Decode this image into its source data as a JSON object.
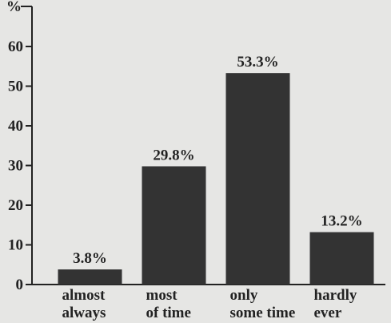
{
  "chart_data": {
    "type": "bar",
    "y_label": "%",
    "categories": [
      "almost\nalways",
      "most\nof time",
      "only\nsome time",
      "hardly\never"
    ],
    "values": [
      3.8,
      29.8,
      53.3,
      13.2
    ],
    "value_labels": [
      "3.8%",
      "29.8%",
      "53.3%",
      "13.2%"
    ],
    "color": "#333333",
    "ylim": [
      0,
      70
    ],
    "yticks": [
      0,
      10,
      20,
      30,
      40,
      50,
      60
    ],
    "grid": false
  }
}
